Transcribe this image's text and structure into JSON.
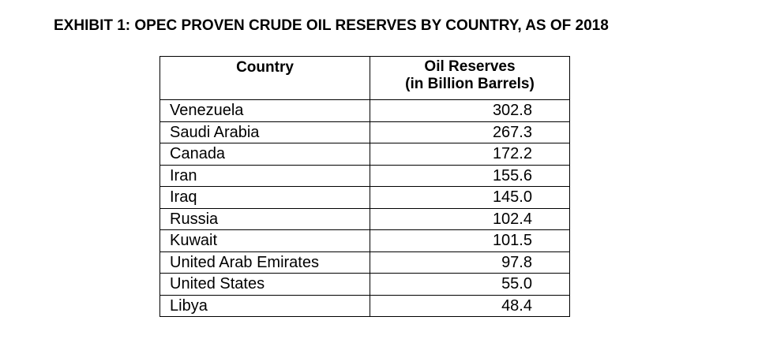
{
  "exhibit": {
    "title": "EXHIBIT 1: OPEC PROVEN CRUDE OIL RESERVES BY COUNTRY, AS OF 2018"
  },
  "table": {
    "headers": {
      "country": "Country",
      "reserves_line1": "Oil Reserves",
      "reserves_line2": "(in Billion Barrels)"
    },
    "rows": [
      {
        "country": "Venezuela",
        "reserves": "302.8"
      },
      {
        "country": "Saudi Arabia",
        "reserves": "267.3"
      },
      {
        "country": "Canada",
        "reserves": "172.2"
      },
      {
        "country": "Iran",
        "reserves": "155.6"
      },
      {
        "country": "Iraq",
        "reserves": "145.0"
      },
      {
        "country": "Russia",
        "reserves": "102.4"
      },
      {
        "country": "Kuwait",
        "reserves": "101.5"
      },
      {
        "country": "United Arab Emirates",
        "reserves": "97.8"
      },
      {
        "country": "United States",
        "reserves": "55.0"
      },
      {
        "country": "Libya",
        "reserves": "48.4"
      }
    ]
  }
}
